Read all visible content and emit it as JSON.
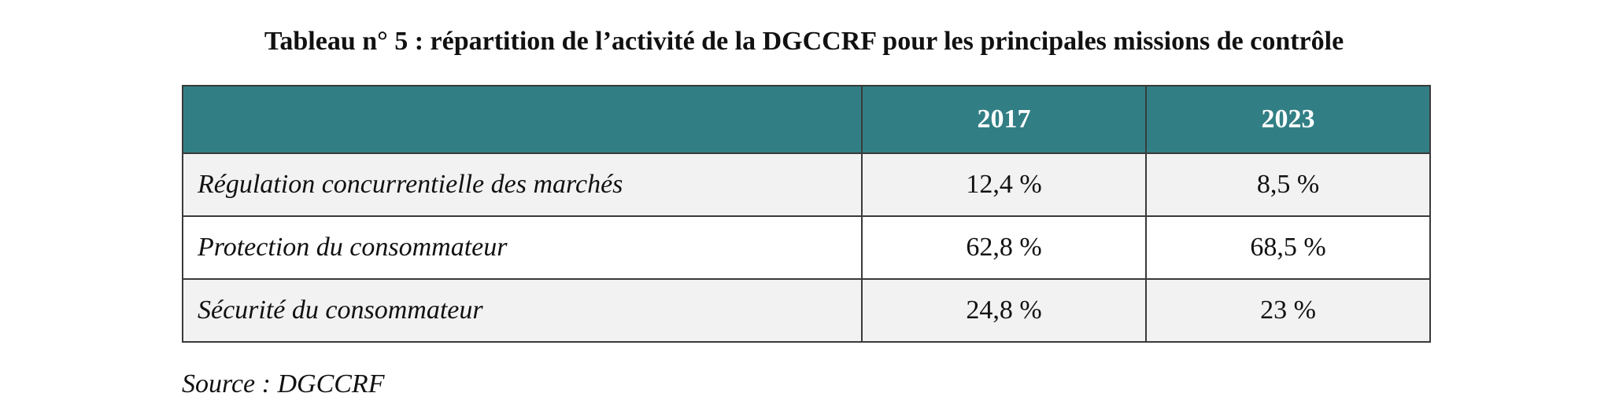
{
  "title": "Tableau n° 5 :  répartition de l’activité de la DGCCRF pour les principales missions de contrôle",
  "table": {
    "headers": [
      "",
      "2017",
      "2023"
    ],
    "rows": [
      {
        "label": "Régulation concurrentielle des marchés",
        "v2017": "12,4 %",
        "v2023": "8,5 %"
      },
      {
        "label": "Protection du consommateur",
        "v2017": "62,8 %",
        "v2023": "68,5 %"
      },
      {
        "label": "Sécurité du consommateur",
        "v2017": "24,8 %",
        "v2023": "23 %"
      }
    ]
  },
  "source": "Source : DGCCRF",
  "colors": {
    "header_bg": "#317f85",
    "header_text": "#ffffff",
    "row_alt_bg": "#f2f2f2",
    "border": "#3a3a3a"
  }
}
